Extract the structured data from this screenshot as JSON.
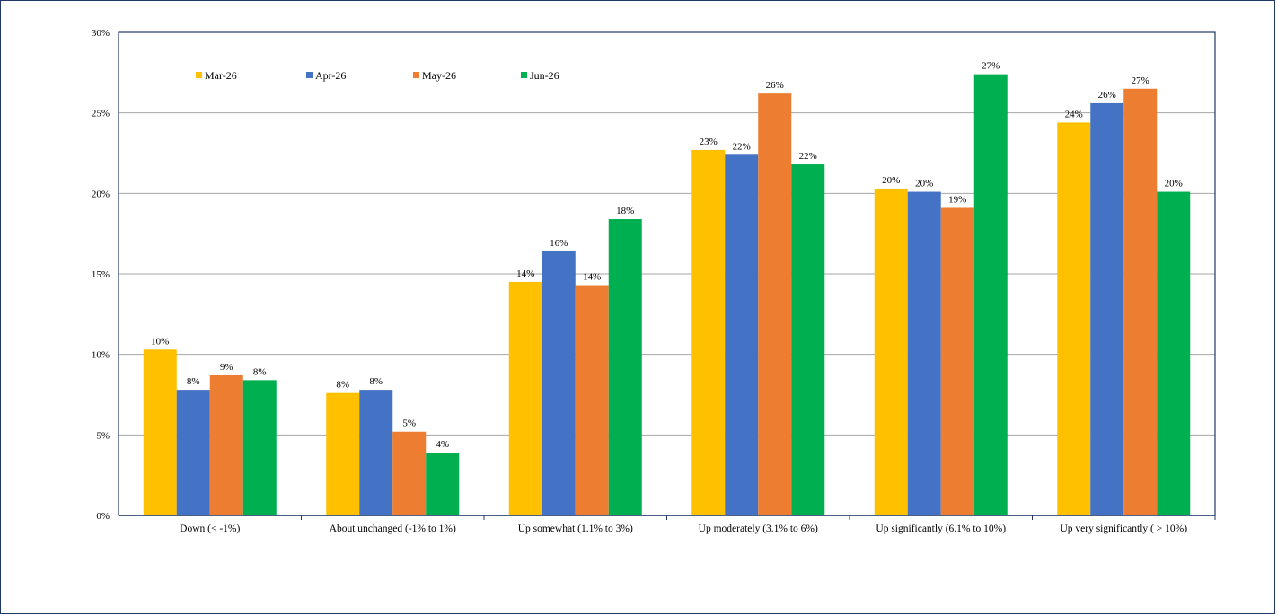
{
  "chart_data": {
    "type": "bar",
    "title": "",
    "xlabel": "",
    "ylabel": "",
    "ylim": [
      0,
      30
    ],
    "yticks": [
      "0%",
      "5%",
      "10%",
      "15%",
      "20%",
      "25%",
      "30%"
    ],
    "grid": true,
    "legend_position": "top-left inside",
    "categories": [
      "Down (< -1%)",
      "About unchanged (-1% to 1%)",
      "Up somewhat (1.1% to 3%)",
      "Up moderately (3.1% to 6%)",
      "Up significantly (6.1% to 10%)",
      "Up very significantly ( > 10%)"
    ],
    "series": [
      {
        "name": "Mar-26",
        "color": "#FFC000",
        "values": [
          10.3,
          7.6,
          14.5,
          22.7,
          20.3,
          24.4
        ],
        "labels": [
          "10%",
          "8%",
          "14%",
          "23%",
          "20%",
          "24%"
        ]
      },
      {
        "name": "Apr-26",
        "color": "#4472C4",
        "values": [
          7.8,
          7.8,
          16.4,
          22.4,
          20.1,
          25.6
        ],
        "labels": [
          "8%",
          "8%",
          "16%",
          "22%",
          "20%",
          "26%"
        ]
      },
      {
        "name": "May-26",
        "color": "#ED7D31",
        "values": [
          8.7,
          5.2,
          14.3,
          26.2,
          19.1,
          26.5
        ],
        "labels": [
          "9%",
          "5%",
          "14%",
          "26%",
          "19%",
          "27%"
        ]
      },
      {
        "name": "Jun-26",
        "color": "#00B050",
        "values": [
          8.4,
          3.9,
          18.4,
          21.8,
          27.4,
          20.1
        ],
        "labels": [
          "8%",
          "4%",
          "18%",
          "22%",
          "27%",
          "20%"
        ]
      }
    ]
  }
}
